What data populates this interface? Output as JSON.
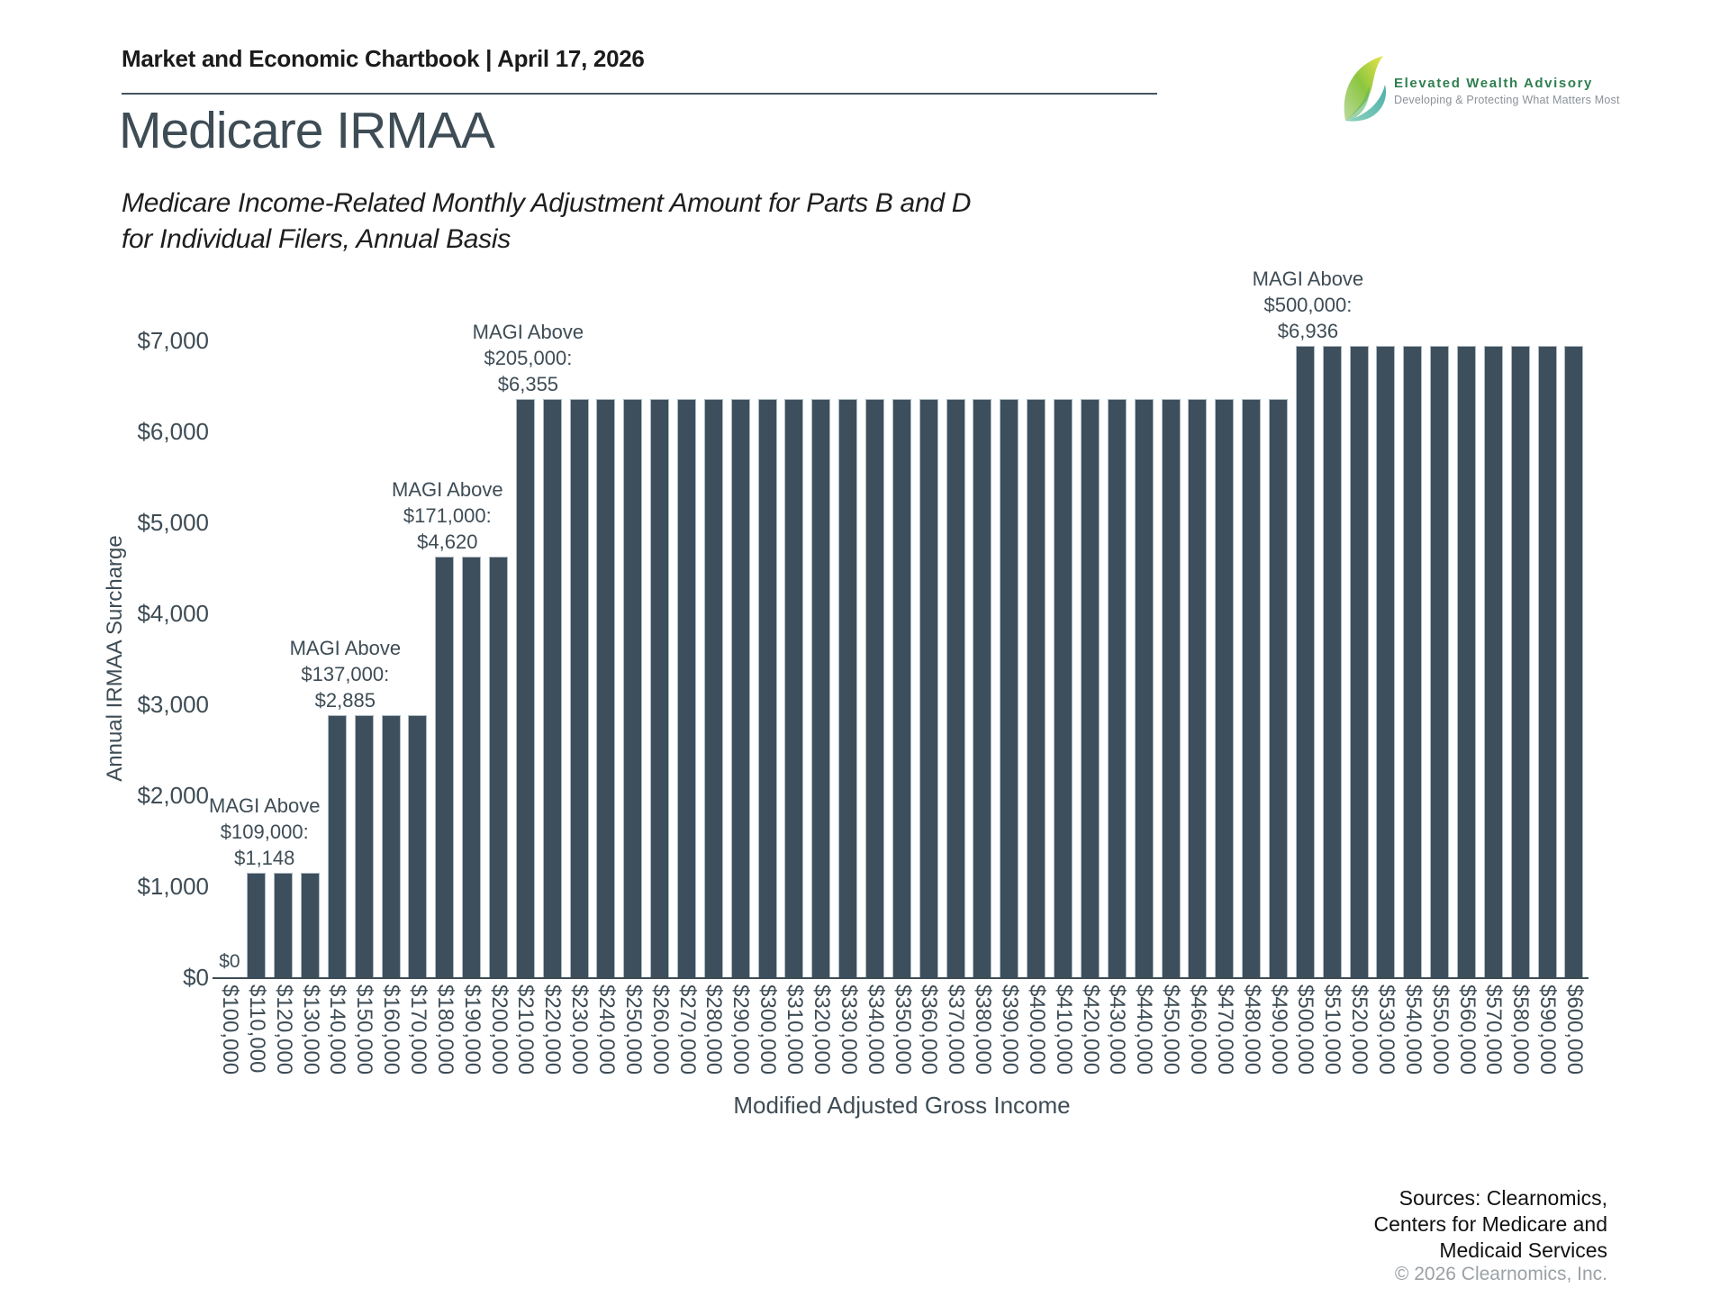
{
  "header": {
    "title": "Market and Economic Chartbook | April 17, 2026"
  },
  "logo": {
    "name": "Elevated Wealth Advisory",
    "tagline": "Developing & Protecting What Matters Most",
    "green": "#2f7e4f"
  },
  "page": {
    "title": "Medicare IRMAA",
    "subtitle_line1": "Medicare Income-Related Monthly Adjustment Amount for Parts B and D",
    "subtitle_line2": "for Individual Filers, Annual Basis"
  },
  "chart_data": {
    "type": "bar",
    "title": "Medicare IRMAA",
    "xlabel": "Modified Adjusted Gross Income",
    "ylabel": "Annual IRMAA Surcharge",
    "ylim": [
      0,
      7000
    ],
    "grid": false,
    "legend": false,
    "bar_color": "#3d4e5c",
    "y_ticks": [
      "$0",
      "$1,000",
      "$2,000",
      "$3,000",
      "$4,000",
      "$5,000",
      "$6,000",
      "$7,000"
    ],
    "y_tick_values": [
      0,
      1000,
      2000,
      3000,
      4000,
      5000,
      6000,
      7000
    ],
    "categories": [
      "$100,000",
      "$110,000",
      "$120,000",
      "$130,000",
      "$140,000",
      "$150,000",
      "$160,000",
      "$170,000",
      "$180,000",
      "$190,000",
      "$200,000",
      "$210,000",
      "$220,000",
      "$230,000",
      "$240,000",
      "$250,000",
      "$260,000",
      "$270,000",
      "$280,000",
      "$290,000",
      "$300,000",
      "$310,000",
      "$320,000",
      "$330,000",
      "$340,000",
      "$350,000",
      "$360,000",
      "$370,000",
      "$380,000",
      "$390,000",
      "$400,000",
      "$410,000",
      "$420,000",
      "$430,000",
      "$440,000",
      "$450,000",
      "$460,000",
      "$470,000",
      "$480,000",
      "$490,000",
      "$500,000",
      "$510,000",
      "$520,000",
      "$530,000",
      "$540,000",
      "$550,000",
      "$560,000",
      "$570,000",
      "$580,000",
      "$590,000",
      "$600,000"
    ],
    "values": [
      0,
      1148,
      1148,
      1148,
      2885,
      2885,
      2885,
      2885,
      4620,
      4620,
      4620,
      6355,
      6355,
      6355,
      6355,
      6355,
      6355,
      6355,
      6355,
      6355,
      6355,
      6355,
      6355,
      6355,
      6355,
      6355,
      6355,
      6355,
      6355,
      6355,
      6355,
      6355,
      6355,
      6355,
      6355,
      6355,
      6355,
      6355,
      6355,
      6355,
      6936,
      6936,
      6936,
      6936,
      6936,
      6936,
      6936,
      6936,
      6936,
      6936,
      6936
    ],
    "annotations": [
      {
        "lines": [
          "MAGI Above",
          "$109,000:",
          "$1,148"
        ],
        "anchor_index": 1.3,
        "value": 1148
      },
      {
        "lines": [
          "MAGI Above",
          "$137,000:",
          "$2,885"
        ],
        "anchor_index": 4.3,
        "value": 2885
      },
      {
        "lines": [
          "MAGI Above",
          "$171,000:",
          "$4,620"
        ],
        "anchor_index": 8.1,
        "value": 4620
      },
      {
        "lines": [
          "MAGI Above",
          "$205,000:",
          "$6,355"
        ],
        "anchor_index": 11.1,
        "value": 6355
      },
      {
        "lines": [
          "MAGI Above",
          "$500,000:",
          "$6,936"
        ],
        "anchor_index": 40.1,
        "value": 6936
      }
    ],
    "zero_label": {
      "text": "$0",
      "anchor_index": 0,
      "value": 0
    }
  },
  "footer": {
    "sources_lines": [
      "Sources: Clearnomics,",
      "Centers for Medicare and",
      "Medicaid Services"
    ],
    "copyright": "© 2026 Clearnomics, Inc."
  }
}
